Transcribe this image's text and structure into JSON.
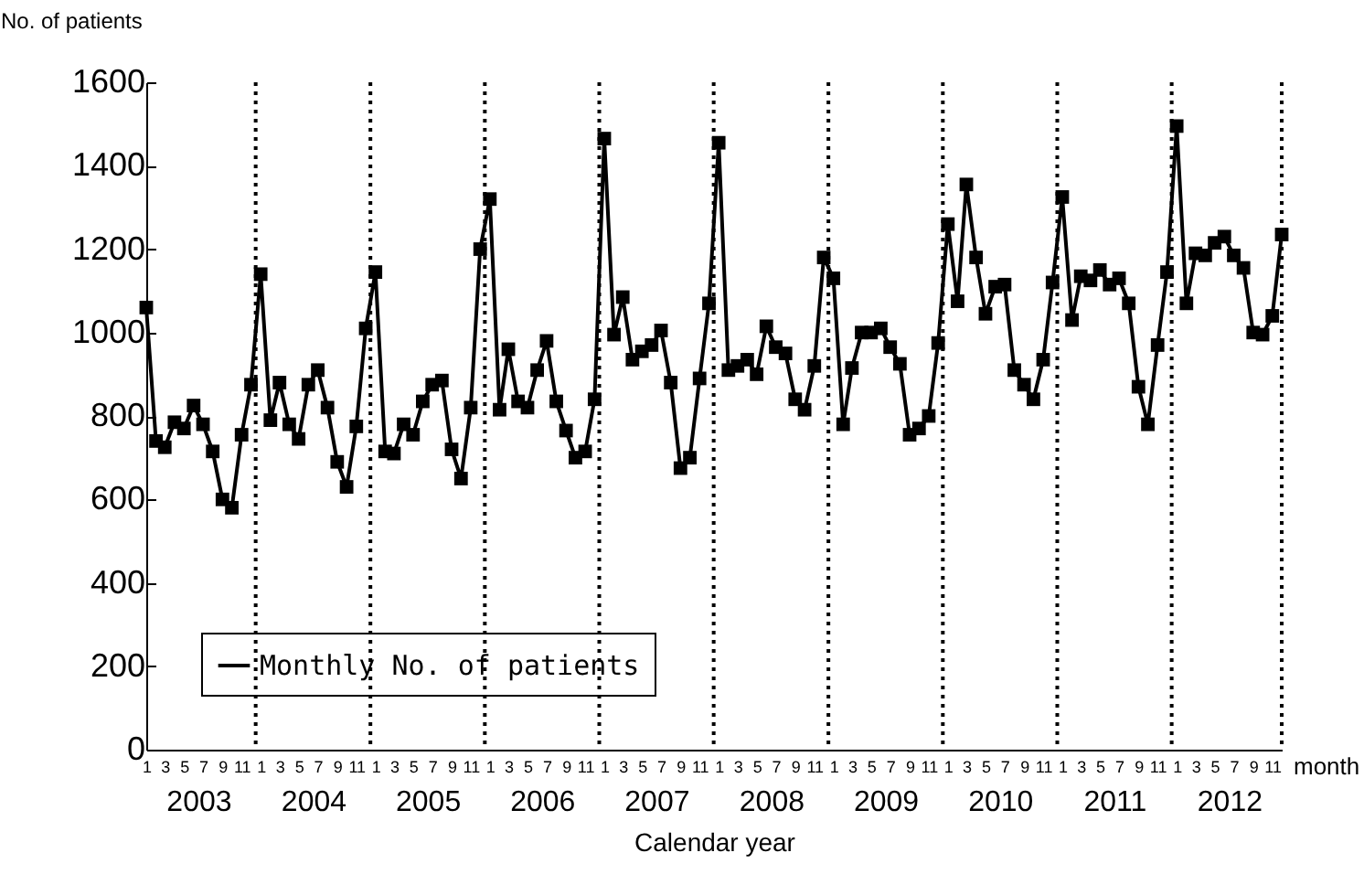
{
  "chart_data": {
    "type": "line",
    "ylabel": "No. of patients",
    "xlabel": "month",
    "x2label": "Calendar year",
    "x": [
      "2003-01",
      "2003-02",
      "2003-03",
      "2003-04",
      "2003-05",
      "2003-06",
      "2003-07",
      "2003-08",
      "2003-09",
      "2003-10",
      "2003-11",
      "2003-12",
      "2004-01",
      "2004-02",
      "2004-03",
      "2004-04",
      "2004-05",
      "2004-06",
      "2004-07",
      "2004-08",
      "2004-09",
      "2004-10",
      "2004-11",
      "2004-12",
      "2005-01",
      "2005-02",
      "2005-03",
      "2005-04",
      "2005-05",
      "2005-06",
      "2005-07",
      "2005-08",
      "2005-09",
      "2005-10",
      "2005-11",
      "2005-12",
      "2006-01",
      "2006-02",
      "2006-03",
      "2006-04",
      "2006-05",
      "2006-06",
      "2006-07",
      "2006-08",
      "2006-09",
      "2006-10",
      "2006-11",
      "2006-12",
      "2007-01",
      "2007-02",
      "2007-03",
      "2007-04",
      "2007-05",
      "2007-06",
      "2007-07",
      "2007-08",
      "2007-09",
      "2007-10",
      "2007-11",
      "2007-12",
      "2008-01",
      "2008-02",
      "2008-03",
      "2008-04",
      "2008-05",
      "2008-06",
      "2008-07",
      "2008-08",
      "2008-09",
      "2008-10",
      "2008-11",
      "2008-12",
      "2009-01",
      "2009-02",
      "2009-03",
      "2009-04",
      "2009-05",
      "2009-06",
      "2009-07",
      "2009-08",
      "2009-09",
      "2009-10",
      "2009-11",
      "2009-12",
      "2010-01",
      "2010-02",
      "2010-03",
      "2010-04",
      "2010-05",
      "2010-06",
      "2010-07",
      "2010-08",
      "2010-09",
      "2010-10",
      "2010-11",
      "2010-12",
      "2011-01",
      "2011-02",
      "2011-03",
      "2011-04",
      "2011-05",
      "2011-06",
      "2011-07",
      "2011-08",
      "2011-09",
      "2011-10",
      "2011-11",
      "2011-12",
      "2012-01",
      "2012-02",
      "2012-03",
      "2012-04",
      "2012-05",
      "2012-06",
      "2012-07",
      "2012-08",
      "2012-09",
      "2012-10",
      "2012-11",
      "2012-12"
    ],
    "series": [
      {
        "name": "Monthly No. of patients",
        "color": "#000000",
        "values": [
          1060,
          740,
          725,
          785,
          770,
          825,
          780,
          715,
          600,
          580,
          755,
          875,
          1140,
          790,
          880,
          780,
          745,
          875,
          910,
          820,
          690,
          630,
          775,
          1010,
          1145,
          715,
          710,
          780,
          755,
          835,
          875,
          885,
          720,
          650,
          820,
          1200,
          1320,
          815,
          960,
          835,
          820,
          910,
          980,
          835,
          765,
          700,
          715,
          840,
          1465,
          995,
          1085,
          935,
          955,
          970,
          1005,
          880,
          675,
          700,
          890,
          1070,
          1455,
          910,
          920,
          935,
          900,
          1015,
          965,
          950,
          840,
          815,
          920,
          1180,
          1130,
          780,
          915,
          1000,
          1000,
          1010,
          965,
          925,
          755,
          770,
          800,
          975,
          1260,
          1075,
          1355,
          1180,
          1045,
          1110,
          1115,
          910,
          875,
          840,
          935,
          1120,
          1325,
          1030,
          1135,
          1125,
          1150,
          1115,
          1130,
          1070,
          870,
          780,
          970,
          1145,
          1495,
          1070,
          1190,
          1185,
          1215,
          1230,
          1185,
          1155,
          1000,
          995,
          1040,
          1235
        ]
      }
    ],
    "xlim": [
      "2003-01",
      "2012-12"
    ],
    "xticks": [
      {
        "value": "2003-01",
        "label": "1"
      },
      {
        "value": "2003-03",
        "label": "3"
      },
      {
        "value": "2003-05",
        "label": "5"
      },
      {
        "value": "2003-07",
        "label": "7"
      },
      {
        "value": "2003-09",
        "label": "9"
      },
      {
        "value": "2003-11",
        "label": "11"
      },
      {
        "value": "2004-01",
        "label": "1"
      },
      {
        "value": "2004-03",
        "label": "3"
      },
      {
        "value": "2004-05",
        "label": "5"
      },
      {
        "value": "2004-07",
        "label": "7"
      },
      {
        "value": "2004-09",
        "label": "9"
      },
      {
        "value": "2004-11",
        "label": "11"
      },
      {
        "value": "2005-01",
        "label": "1"
      },
      {
        "value": "2005-03",
        "label": "3"
      },
      {
        "value": "2005-05",
        "label": "5"
      },
      {
        "value": "2005-07",
        "label": "7"
      },
      {
        "value": "2005-09",
        "label": "9"
      },
      {
        "value": "2005-11",
        "label": "11"
      },
      {
        "value": "2006-01",
        "label": "1"
      },
      {
        "value": "2006-03",
        "label": "3"
      },
      {
        "value": "2006-05",
        "label": "5"
      },
      {
        "value": "2006-07",
        "label": "7"
      },
      {
        "value": "2006-09",
        "label": "9"
      },
      {
        "value": "2006-11",
        "label": "11"
      },
      {
        "value": "2007-01",
        "label": "1"
      },
      {
        "value": "2007-03",
        "label": "3"
      },
      {
        "value": "2007-05",
        "label": "5"
      },
      {
        "value": "2007-07",
        "label": "7"
      },
      {
        "value": "2007-09",
        "label": "9"
      },
      {
        "value": "2007-11",
        "label": "11"
      },
      {
        "value": "2008-01",
        "label": "1"
      },
      {
        "value": "2008-03",
        "label": "3"
      },
      {
        "value": "2008-05",
        "label": "5"
      },
      {
        "value": "2008-07",
        "label": "7"
      },
      {
        "value": "2008-09",
        "label": "9"
      },
      {
        "value": "2008-11",
        "label": "11"
      },
      {
        "value": "2009-01",
        "label": "1"
      },
      {
        "value": "2009-03",
        "label": "3"
      },
      {
        "value": "2009-05",
        "label": "5"
      },
      {
        "value": "2009-07",
        "label": "7"
      },
      {
        "value": "2009-09",
        "label": "9"
      },
      {
        "value": "2009-11",
        "label": "11"
      },
      {
        "value": "2010-01",
        "label": "1"
      },
      {
        "value": "2010-03",
        "label": "3"
      },
      {
        "value": "2010-05",
        "label": "5"
      },
      {
        "value": "2010-07",
        "label": "7"
      },
      {
        "value": "2010-09",
        "label": "9"
      },
      {
        "value": "2010-11",
        "label": "11"
      },
      {
        "value": "2011-01",
        "label": "1"
      },
      {
        "value": "2011-03",
        "label": "3"
      },
      {
        "value": "2011-05",
        "label": "5"
      },
      {
        "value": "2011-07",
        "label": "7"
      },
      {
        "value": "2011-09",
        "label": "9"
      },
      {
        "value": "2011-11",
        "label": "11"
      },
      {
        "value": "2012-01",
        "label": "1"
      },
      {
        "value": "2012-03",
        "label": "3"
      },
      {
        "value": "2012-05",
        "label": "5"
      },
      {
        "value": "2012-07",
        "label": "7"
      },
      {
        "value": "2012-09",
        "label": "9"
      },
      {
        "value": "2012-11",
        "label": "11"
      }
    ],
    "x2lim": [
      "2003-01",
      "2012-12"
    ],
    "x2ticks": [
      {
        "value": "2003-06-16",
        "label": "2003"
      },
      {
        "value": "2004-06-16",
        "label": "2004"
      },
      {
        "value": "2005-06-16",
        "label": "2005"
      },
      {
        "value": "2006-06-16",
        "label": "2006"
      },
      {
        "value": "2007-06-16",
        "label": "2007"
      },
      {
        "value": "2008-06-16",
        "label": "2008"
      },
      {
        "value": "2009-06-16",
        "label": "2009"
      },
      {
        "value": "2010-06-16",
        "label": "2010"
      },
      {
        "value": "2011-06-16",
        "label": "2011"
      },
      {
        "value": "2012-06-16",
        "label": "2012"
      }
    ],
    "ylim": [
      0,
      1600
    ],
    "yticks": [
      0,
      200,
      400,
      600,
      800,
      1000,
      1200,
      1400,
      1600
    ],
    "ref_lines": [
      {
        "axis": "x",
        "value": "2003-12-16",
        "line_style": "dotted"
      },
      {
        "axis": "x",
        "value": "2004-12-16",
        "line_style": "dotted"
      },
      {
        "axis": "x",
        "value": "2005-12-16",
        "line_style": "dotted"
      },
      {
        "axis": "x",
        "value": "2006-12-16",
        "line_style": "dotted"
      },
      {
        "axis": "x",
        "value": "2007-12-16",
        "line_style": "dotted"
      },
      {
        "axis": "x",
        "value": "2008-12-16",
        "line_style": "dotted"
      },
      {
        "axis": "x",
        "value": "2009-12-16",
        "line_style": "dotted"
      },
      {
        "axis": "x",
        "value": "2010-12-16",
        "line_style": "dotted"
      },
      {
        "axis": "x",
        "value": "2011-12-16",
        "line_style": "dotted"
      },
      {
        "axis": "x",
        "value": "2012-12",
        "line_style": "dotted"
      }
    ],
    "grid": false,
    "legend": "bottom left",
    "marker": "square",
    "line_style": "solid"
  }
}
